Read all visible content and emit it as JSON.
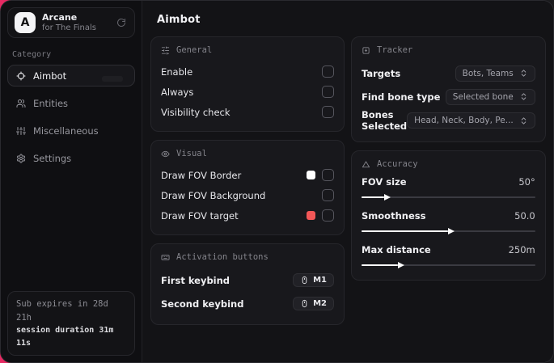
{
  "brand": {
    "logo_letter": "A",
    "name": "Arcane",
    "subtitle": "for The Finals"
  },
  "sidebar": {
    "category_label": "Category",
    "items": [
      {
        "label": "Aimbot",
        "active": true
      },
      {
        "label": "Entities",
        "active": false
      },
      {
        "label": "Miscellaneous",
        "active": false
      },
      {
        "label": "Settings",
        "active": false
      }
    ],
    "footer": {
      "expiry": "Sub expires in 28d 21h",
      "session": "session duration 31m 11s"
    }
  },
  "page": {
    "title": "Aimbot"
  },
  "general": {
    "title": "General",
    "rows": [
      {
        "label": "Enable",
        "checked": false
      },
      {
        "label": "Always",
        "checked": false
      },
      {
        "label": "Visibility check",
        "checked": false
      }
    ]
  },
  "visual": {
    "title": "Visual",
    "rows": [
      {
        "label": "Draw FOV Border",
        "swatch": "#ffffff",
        "checked": false
      },
      {
        "label": "Draw FOV Background",
        "checked": false
      },
      {
        "label": "Draw FOV target",
        "swatch": "#f25757",
        "checked": false
      }
    ]
  },
  "activation": {
    "title": "Activation buttons",
    "rows": [
      {
        "label": "First keybind",
        "key": "M1"
      },
      {
        "label": "Second keybind",
        "key": "M2"
      }
    ]
  },
  "tracker": {
    "title": "Tracker",
    "rows": [
      {
        "label": "Targets",
        "value": "Bots, Teams"
      },
      {
        "label": "Find bone type",
        "value": "Selected bone"
      },
      {
        "label": "Bones Selected",
        "value": "Head, Neck, Body, Pe..."
      }
    ]
  },
  "accuracy": {
    "title": "Accuracy",
    "rows": [
      {
        "label": "FOV size",
        "value": "50°",
        "percent": 13
      },
      {
        "label": "Smoothness",
        "value": "50.0",
        "percent": 50
      },
      {
        "label": "Max distance",
        "value": "250m",
        "percent": 21
      }
    ]
  },
  "colors": {
    "accent": "#d81b5e",
    "fov_border_swatch": "#ffffff",
    "fov_target_swatch": "#f25757"
  }
}
